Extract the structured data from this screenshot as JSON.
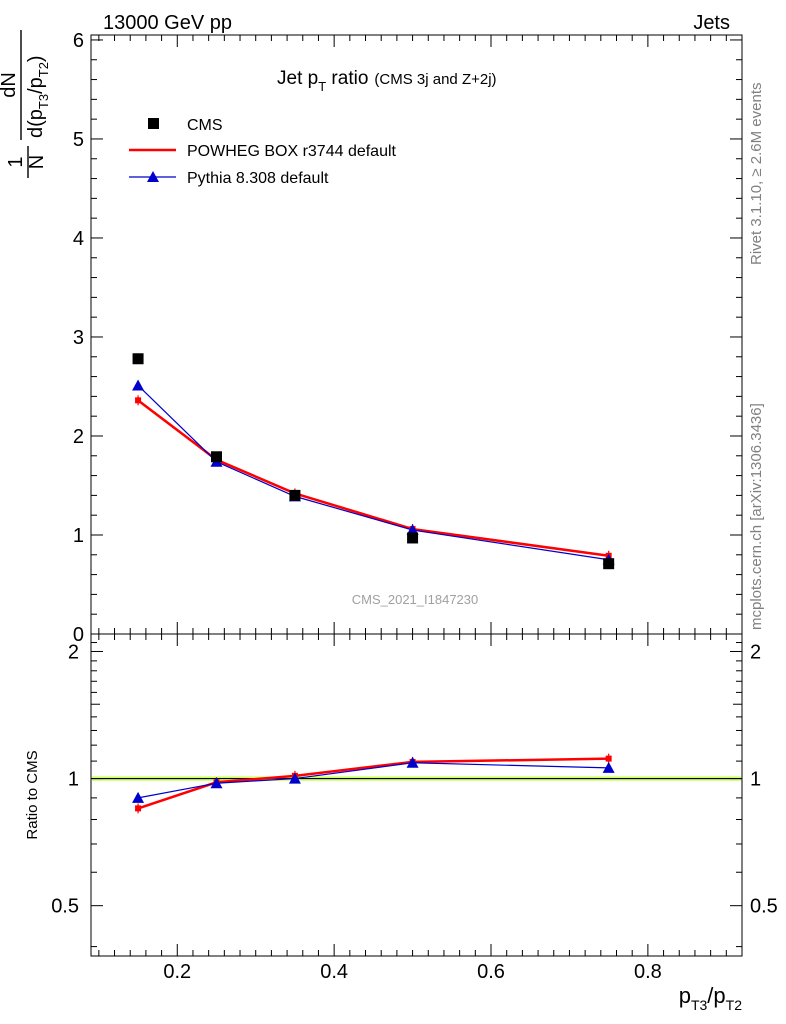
{
  "header": {
    "left": "13000 GeV pp",
    "right": "Jets"
  },
  "side_labels": {
    "rivet": "Rivet 3.1.10, ≥ 2.6M events",
    "mcplots": "mcplots.cern.ch [arXiv:1306.3436]"
  },
  "watermark": "CMS_2021_I1847230",
  "chart_data": [
    {
      "type": "scatter",
      "panel": "main",
      "title": {
        "main": "Jet p",
        "sub": "T",
        "main_after": " ratio",
        "small": "(CMS 3j and Z+2j)"
      },
      "ylabel": {
        "one": "1",
        "N": "N",
        "dN": "dN",
        "d": "d(p",
        "s1": "T3",
        "slash": "/p",
        "s2": "T2",
        "close": ")"
      },
      "ylim": [
        0,
        6.05
      ],
      "xlim": [
        0.09,
        0.92
      ],
      "y_ticks": [
        0,
        1,
        2,
        3,
        4,
        5,
        6
      ],
      "y_tick_labels": [
        "0",
        "1",
        "2",
        "3",
        "4",
        "5",
        "6"
      ],
      "legend_placement": "top-left",
      "series": [
        {
          "name": "CMS",
          "color": "#000000",
          "marker": "square",
          "x": [
            0.15,
            0.25,
            0.35,
            0.5,
            0.75
          ],
          "y": [
            2.78,
            1.79,
            1.4,
            0.97,
            0.71
          ]
        },
        {
          "name": "POWHEG BOX r3744 default",
          "color": "#ff0000",
          "marker": "line",
          "x": [
            0.15,
            0.25,
            0.35,
            0.5,
            0.75
          ],
          "y": [
            2.36,
            1.76,
            1.42,
            1.06,
            0.79
          ]
        },
        {
          "name": "Pythia 8.308 default",
          "color": "#0000cc",
          "marker": "triangle",
          "x": [
            0.15,
            0.25,
            0.35,
            0.5,
            0.75
          ],
          "y": [
            2.51,
            1.74,
            1.39,
            1.05,
            0.75
          ]
        }
      ]
    },
    {
      "type": "line",
      "panel": "ratio",
      "ylabel": "Ratio to CMS",
      "xlabel": {
        "p1": "p",
        "s1": "T3",
        "slash": "/p",
        "s2": "T2"
      },
      "ylim": [
        0.38,
        2.2
      ],
      "xlim": [
        0.09,
        0.92
      ],
      "y_ticks": [
        0.5,
        1,
        2
      ],
      "y_tick_labels": [
        "0.5",
        "1",
        "2"
      ],
      "x_ticks": [
        0.2,
        0.4,
        0.6,
        0.8
      ],
      "x_tick_labels": [
        "0.2",
        "0.4",
        "0.6",
        "0.8"
      ],
      "reference": 1,
      "band_color": "#ccff66",
      "series": [
        {
          "name": "POWHEG BOX r3744 default",
          "color": "#ff0000",
          "marker": "line",
          "x": [
            0.15,
            0.25,
            0.35,
            0.5,
            0.75
          ],
          "y": [
            0.85,
            0.98,
            1.015,
            1.095,
            1.115
          ]
        },
        {
          "name": "Pythia 8.308 default",
          "color": "#0000cc",
          "marker": "triangle",
          "x": [
            0.15,
            0.25,
            0.35,
            0.5,
            0.75
          ],
          "y": [
            0.9,
            0.975,
            1.0,
            1.09,
            1.06
          ]
        }
      ]
    }
  ]
}
